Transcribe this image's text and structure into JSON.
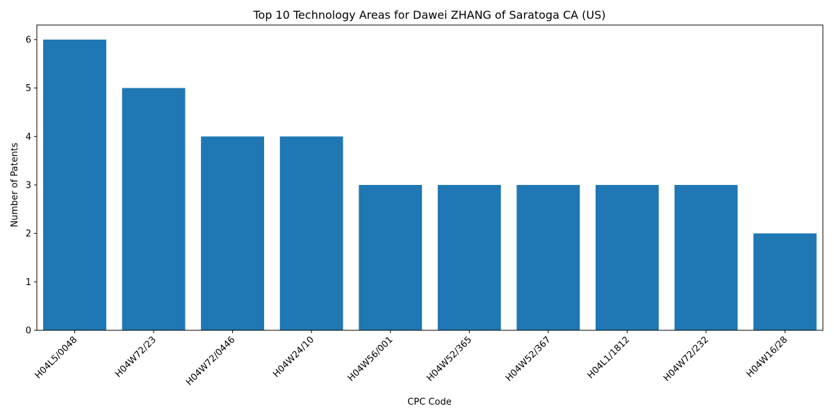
{
  "chart_data": {
    "type": "bar",
    "title": "Top 10 Technology Areas for Dawei ZHANG of Saratoga CA (US)",
    "xlabel": "CPC Code",
    "ylabel": "Number of Patents",
    "categories": [
      "H04L5/0048",
      "H04W72/23",
      "H04W72/0446",
      "H04W24/10",
      "H04W56/001",
      "H04W52/365",
      "H04W52/367",
      "H04L1/1812",
      "H04W72/232",
      "H04W16/28"
    ],
    "values": [
      6,
      5,
      4,
      4,
      3,
      3,
      3,
      3,
      3,
      2
    ],
    "ylim": [
      0,
      6.3
    ],
    "yticks": [
      0,
      1,
      2,
      3,
      4,
      5,
      6
    ],
    "grid": false,
    "legend": "none",
    "bar_color": "#1f77b4"
  }
}
